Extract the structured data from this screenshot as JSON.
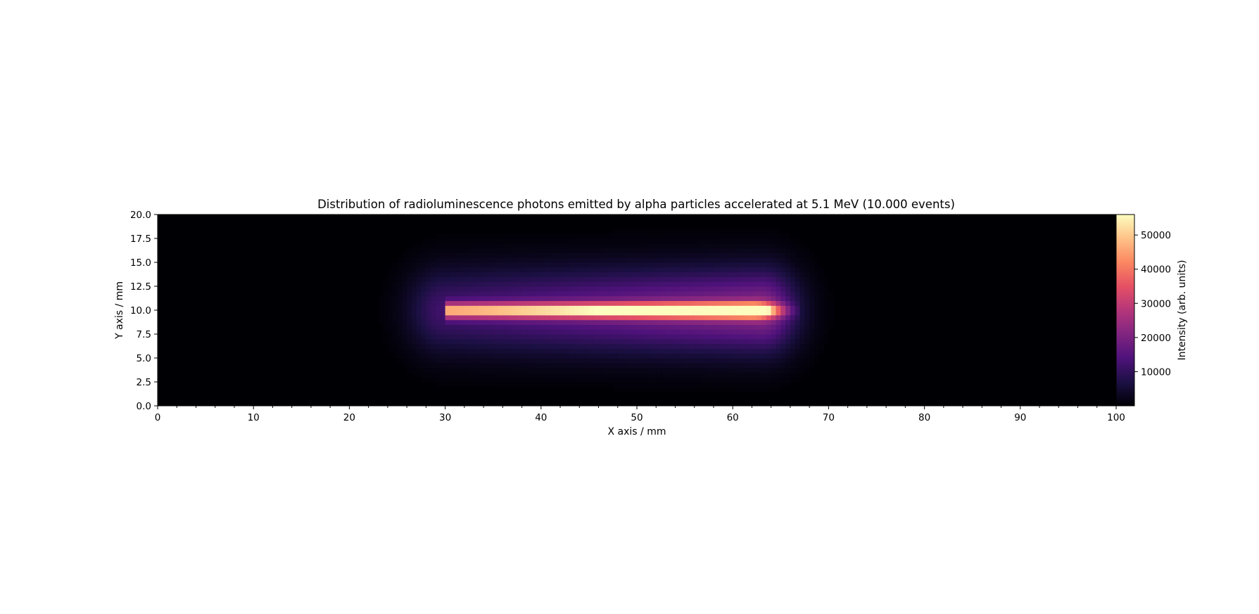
{
  "chart_data": {
    "type": "heatmap",
    "title": "Distribution of radioluminescence photons emitted by alpha particles accelerated at 5.1 MeV (10.000 events)",
    "xlabel": "X axis / mm",
    "ylabel": "Y axis / mm",
    "xlim": [
      0,
      100
    ],
    "ylim": [
      0,
      20
    ],
    "x_ticks": [
      "0",
      "10",
      "20",
      "30",
      "40",
      "50",
      "60",
      "70",
      "80",
      "90",
      "100"
    ],
    "y_ticks": [
      "0.0",
      "2.5",
      "5.0",
      "7.5",
      "10.0",
      "12.5",
      "15.0",
      "17.5",
      "20.0"
    ],
    "grid": false,
    "colormap": "magma",
    "colorbar": {
      "label": "Intensity (arb. units)",
      "ticks": [
        "10000",
        "20000",
        "30000",
        "40000",
        "50000"
      ],
      "range": [
        0,
        56000
      ]
    },
    "track": {
      "x_start_mm": 30,
      "x_peak_mm": 62,
      "x_end_mm": 66,
      "y_center_mm": 10,
      "intensity_start": 38000,
      "intensity_peak": 56000
    }
  }
}
